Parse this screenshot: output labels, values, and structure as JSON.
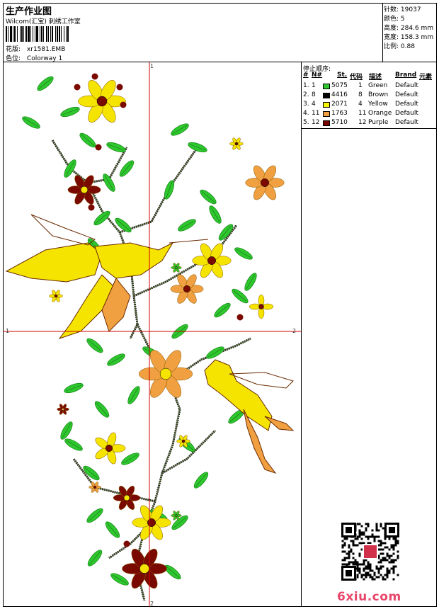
{
  "header": {
    "title": "生产作业图",
    "company": "Wilcom(汇宝) 刺绣工作室",
    "design_label": "花版:",
    "design_value": "xr1581.EMB",
    "colorway_label": "色位:",
    "colorway_value": "Colorway 1"
  },
  "stats": [
    {
      "label": "针数:",
      "value": "19037"
    },
    {
      "label": "颜色:",
      "value": "5"
    },
    {
      "label": "高度:",
      "value": "284.6 mm"
    },
    {
      "label": "宽度:",
      "value": "158.3 mm"
    },
    {
      "label": "比例:",
      "value": "0.88"
    }
  ],
  "stops": {
    "title": "停止顺序:",
    "headers": [
      "#",
      "N#",
      "St.",
      "代码",
      "描述",
      "Brand",
      "元素"
    ],
    "rows": [
      {
        "idx": "1.",
        "n": "1",
        "color": "#2ec82e",
        "st": "5075",
        "code": "1",
        "desc": "Green",
        "brand": "Default"
      },
      {
        "idx": "2.",
        "n": "8",
        "color": "#000000",
        "st": "4416",
        "code": "8",
        "desc": "Brown",
        "brand": "Default"
      },
      {
        "idx": "3.",
        "n": "4",
        "color": "#f5f500",
        "st": "2071",
        "code": "4",
        "desc": "Yellow",
        "brand": "Default"
      },
      {
        "idx": "4.",
        "n": "11",
        "color": "#f0a040",
        "st": "1763",
        "code": "11",
        "desc": "Orange",
        "brand": "Default"
      },
      {
        "idx": "5.",
        "n": "12",
        "color": "#7a0000",
        "st": "5710",
        "code": "12",
        "desc": "Purple",
        "brand": "Default"
      }
    ]
  },
  "axes": {
    "top": "1",
    "bottom": "2",
    "left": "1",
    "right": "2"
  },
  "watermark": "6xiu.com",
  "colors": {
    "green": "#2ec82e",
    "yellow": "#f5e400",
    "orange": "#f0a040",
    "purple": "#7a0a00",
    "brown": "#6b2a00",
    "crosshair": "#d00000"
  }
}
